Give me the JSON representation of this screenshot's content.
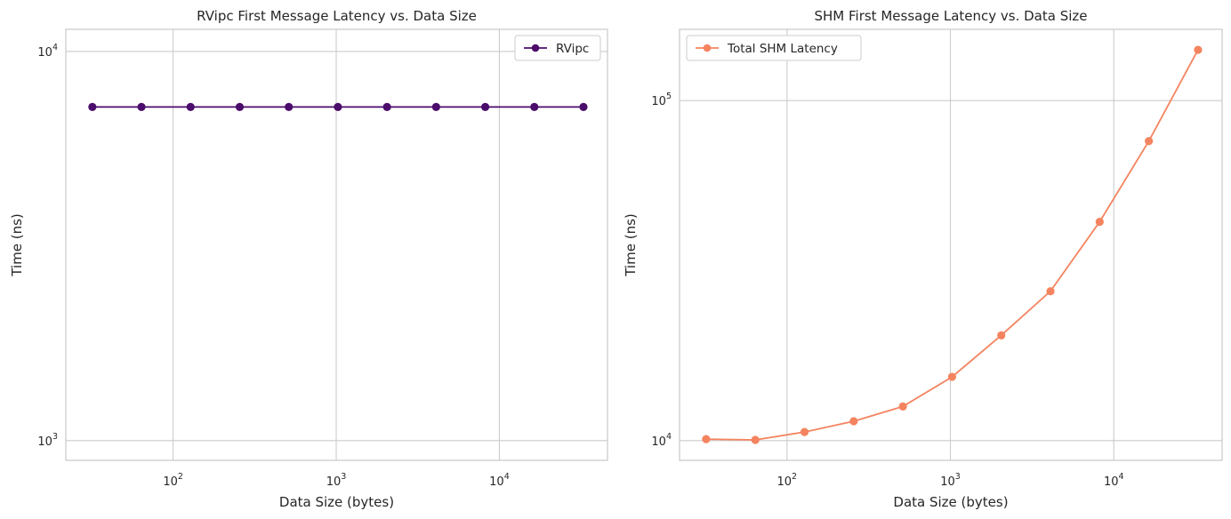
{
  "chart_data": [
    {
      "type": "line",
      "title": "RVipc First Message Latency vs. Data Size",
      "xlabel": "Data Size (bytes)",
      "ylabel": "Time (ns)",
      "xscale": "log",
      "yscale": "log",
      "xlim": [
        22,
        46000
      ],
      "ylim": [
        890,
        11400
      ],
      "x_ticks": [
        {
          "value": 100,
          "base": "10",
          "exp": "2"
        },
        {
          "value": 1000,
          "base": "10",
          "exp": "3"
        },
        {
          "value": 10000,
          "base": "10",
          "exp": "4"
        }
      ],
      "y_ticks": [
        {
          "value": 1000,
          "base": "10",
          "exp": "3"
        },
        {
          "value": 10000,
          "base": "10",
          "exp": "4"
        }
      ],
      "grid": true,
      "legend_position": "top-right",
      "x": [
        32,
        64,
        128,
        256,
        512,
        1024,
        2048,
        4096,
        8192,
        16384,
        32768
      ],
      "series": [
        {
          "name": "RVipc",
          "color": "#4b0c6b",
          "marker": "circle",
          "values": [
            7200,
            7200,
            7200,
            7200,
            7200,
            7200,
            7200,
            7200,
            7200,
            7200,
            7200
          ]
        }
      ]
    },
    {
      "type": "line",
      "title": "SHM First Message Latency vs. Data Size",
      "xlabel": "Data Size (bytes)",
      "ylabel": "Time (ns)",
      "xscale": "log",
      "yscale": "log",
      "xlim": [
        22,
        46000
      ],
      "ylim": [
        8750,
        162000
      ],
      "x_ticks": [
        {
          "value": 100,
          "base": "10",
          "exp": "2"
        },
        {
          "value": 1000,
          "base": "10",
          "exp": "3"
        },
        {
          "value": 10000,
          "base": "10",
          "exp": "4"
        }
      ],
      "y_ticks": [
        {
          "value": 10000,
          "base": "10",
          "exp": "4"
        },
        {
          "value": 100000,
          "base": "10",
          "exp": "5"
        }
      ],
      "grid": true,
      "legend_position": "top-left",
      "x": [
        32,
        64,
        128,
        256,
        512,
        1024,
        2048,
        4096,
        8192,
        16384,
        32768
      ],
      "series": [
        {
          "name": "Total SHM Latency",
          "color": "#f4845f",
          "marker": "circle",
          "values": [
            10100,
            10050,
            10600,
            11400,
            12600,
            15400,
            20400,
            27500,
            44000,
            76000,
            141000
          ]
        }
      ]
    }
  ]
}
